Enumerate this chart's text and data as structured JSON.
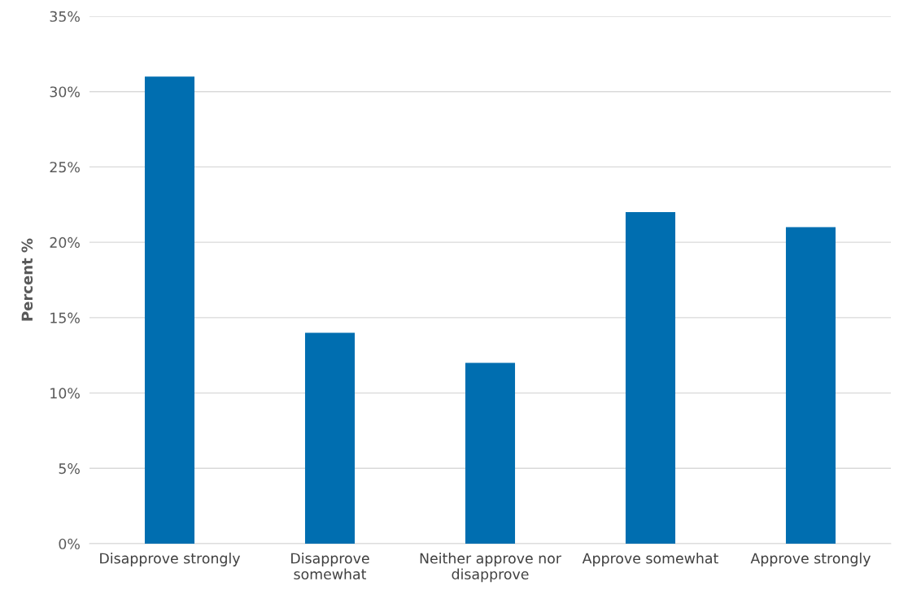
{
  "chart_data": {
    "type": "bar",
    "ylabel": "Percent %",
    "categories": [
      "Disapprove strongly",
      "Disapprove somewhat",
      "Neither approve nor disapprove",
      "Approve somewhat",
      "Approve strongly"
    ],
    "values": [
      31,
      14,
      12,
      22,
      21
    ],
    "color": "#006eb0",
    "ylim": [
      0,
      35
    ],
    "yticks": [
      {
        "value": 0,
        "label": "0%"
      },
      {
        "value": 5,
        "label": "5%"
      },
      {
        "value": 10,
        "label": "10%"
      },
      {
        "value": 15,
        "label": "15%"
      },
      {
        "value": 20,
        "label": "20%"
      },
      {
        "value": 25,
        "label": "25%"
      },
      {
        "value": 30,
        "label": "30%"
      },
      {
        "value": 35,
        "label": "35%"
      }
    ],
    "grid": "y"
  }
}
